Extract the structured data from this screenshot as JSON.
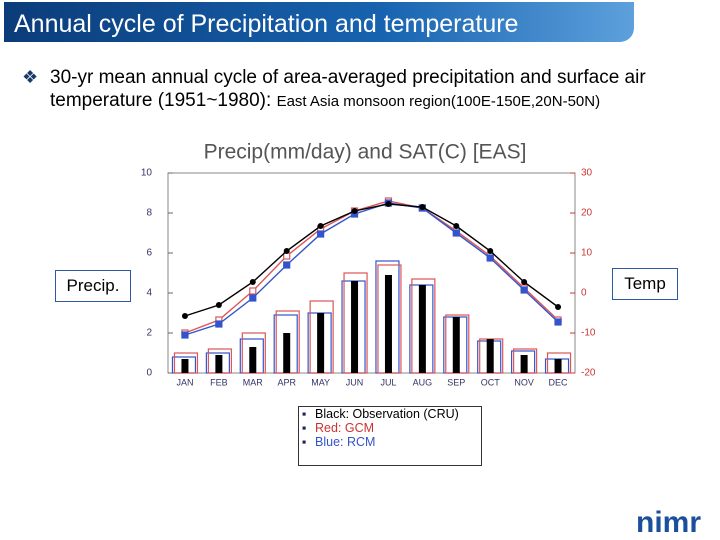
{
  "header": {
    "title": "Annual cycle of Precipitation and temperature"
  },
  "bullet": {
    "main": "30-yr mean annual cycle of area-averaged precipitation and surface air temperature (1951~1980): ",
    "region": "East Asia monsoon region(100E-150E,20N-50N)"
  },
  "notes": [
    "Black: Observation (CRU)",
    "Red:   GCM",
    "Blue:   RCM"
  ],
  "logo": "nimr",
  "chart_data": {
    "type": "bar-line",
    "title": "Precip(mm/day)  and  SAT(C)  [EAS]",
    "ylabel": "Precip.",
    "y2label": "Temp",
    "categories": [
      "JAN",
      "FEB",
      "MAR",
      "APR",
      "MAY",
      "JUN",
      "JUL",
      "AUG",
      "SEP",
      "OCT",
      "NOV",
      "DEC"
    ],
    "ylim": [
      0,
      10
    ],
    "yticks": [
      0,
      2,
      4,
      6,
      8,
      10
    ],
    "y2lim": [
      -20,
      30
    ],
    "y2ticks": [
      -20,
      -10,
      0,
      10,
      20,
      30
    ],
    "series": [
      {
        "kind": "bar-outline",
        "color": "#3355cc",
        "axis": "y",
        "values": [
          0.8,
          1.0,
          1.7,
          2.9,
          3.0,
          4.6,
          5.6,
          4.4,
          2.8,
          1.6,
          1.1,
          0.7
        ]
      },
      {
        "kind": "bar-outline",
        "color": "#dd5555",
        "axis": "y",
        "values": [
          1.0,
          1.2,
          2.0,
          3.1,
          3.6,
          5.0,
          5.4,
          4.7,
          2.9,
          1.7,
          1.2,
          1.0
        ]
      },
      {
        "kind": "bar-filled",
        "color": "#000000",
        "axis": "y",
        "values": [
          0.7,
          0.9,
          1.3,
          2.0,
          3.0,
          4.6,
          4.9,
          4.4,
          2.8,
          1.7,
          0.9,
          0.7
        ]
      },
      {
        "kind": "line",
        "marker": "square-open",
        "color": "#dd5555",
        "axis": "y2",
        "values": [
          -10,
          -6.75,
          0.5,
          9.25,
          16,
          20.5,
          23,
          21.25,
          15.5,
          9.25,
          1.25,
          -6.75
        ]
      },
      {
        "kind": "line",
        "marker": "square",
        "color": "#3355cc",
        "axis": "y2",
        "values": [
          -10.5,
          -7.75,
          -1.25,
          7,
          14.75,
          19.75,
          22.5,
          21.25,
          15,
          8.75,
          0.75,
          -7.25
        ]
      },
      {
        "kind": "line",
        "marker": "circle",
        "color": "#000000",
        "axis": "y2",
        "values": [
          -5.75,
          -3,
          2.75,
          10.5,
          16.75,
          20.5,
          22.25,
          21.5,
          16.75,
          10.5,
          2.75,
          -3.5
        ]
      }
    ]
  }
}
